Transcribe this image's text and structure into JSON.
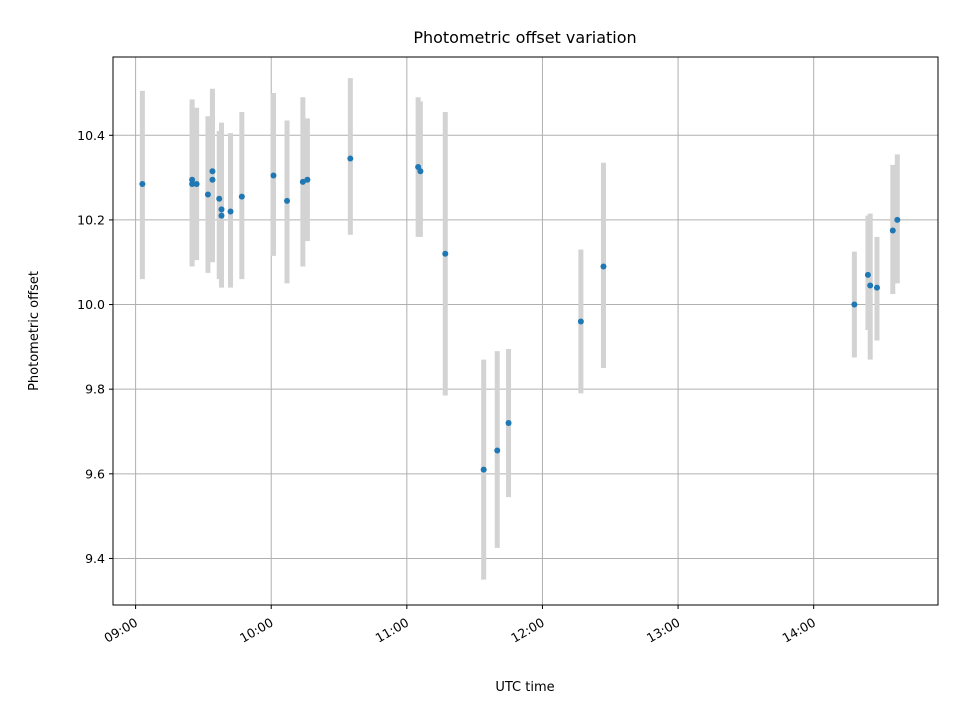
{
  "chart_data": {
    "type": "scatter",
    "title": "Photometric offset variation",
    "xlabel": "UTC time",
    "ylabel": "Photometric offset",
    "x_ticks": [
      "09:00",
      "10:00",
      "11:00",
      "12:00",
      "13:00",
      "14:00"
    ],
    "y_ticks": [
      "9.4",
      "9.6",
      "9.8",
      "10.0",
      "10.2",
      "10.4"
    ],
    "xlim": [
      "08:50",
      "14:55"
    ],
    "ylim": [
      9.29,
      10.585
    ],
    "grid": true,
    "point_color": "#1f77b4",
    "errorbar_color": "#d3d3d3",
    "points": [
      {
        "t": "09:03",
        "y": 10.285,
        "lo": 10.06,
        "hi": 10.505
      },
      {
        "t": "09:25",
        "y": 10.295,
        "lo": 10.09,
        "hi": 10.485
      },
      {
        "t": "09:25",
        "y": 10.285,
        "lo": 10.1,
        "hi": 10.475
      },
      {
        "t": "09:27",
        "y": 10.285,
        "lo": 10.105,
        "hi": 10.465
      },
      {
        "t": "09:32",
        "y": 10.26,
        "lo": 10.075,
        "hi": 10.445
      },
      {
        "t": "09:34",
        "y": 10.315,
        "lo": 10.12,
        "hi": 10.51
      },
      {
        "t": "09:34",
        "y": 10.295,
        "lo": 10.1,
        "hi": 10.5
      },
      {
        "t": "09:37",
        "y": 10.25,
        "lo": 10.06,
        "hi": 10.41
      },
      {
        "t": "09:38",
        "y": 10.225,
        "lo": 10.04,
        "hi": 10.43
      },
      {
        "t": "09:38",
        "y": 10.21,
        "lo": 10.045,
        "hi": 10.4
      },
      {
        "t": "09:42",
        "y": 10.22,
        "lo": 10.04,
        "hi": 10.405
      },
      {
        "t": "09:47",
        "y": 10.255,
        "lo": 10.06,
        "hi": 10.455
      },
      {
        "t": "10:01",
        "y": 10.305,
        "lo": 10.115,
        "hi": 10.5
      },
      {
        "t": "10:07",
        "y": 10.245,
        "lo": 10.05,
        "hi": 10.435
      },
      {
        "t": "10:14",
        "y": 10.29,
        "lo": 10.09,
        "hi": 10.49
      },
      {
        "t": "10:16",
        "y": 10.295,
        "lo": 10.15,
        "hi": 10.44
      },
      {
        "t": "10:35",
        "y": 10.345,
        "lo": 10.165,
        "hi": 10.535
      },
      {
        "t": "11:05",
        "y": 10.325,
        "lo": 10.16,
        "hi": 10.49
      },
      {
        "t": "11:06",
        "y": 10.315,
        "lo": 10.16,
        "hi": 10.48
      },
      {
        "t": "11:17",
        "y": 10.12,
        "lo": 9.785,
        "hi": 10.455
      },
      {
        "t": "11:34",
        "y": 9.61,
        "lo": 9.35,
        "hi": 9.87
      },
      {
        "t": "11:40",
        "y": 9.655,
        "lo": 9.425,
        "hi": 9.89
      },
      {
        "t": "11:45",
        "y": 9.72,
        "lo": 9.545,
        "hi": 9.895
      },
      {
        "t": "12:17",
        "y": 9.96,
        "lo": 9.79,
        "hi": 10.13
      },
      {
        "t": "12:27",
        "y": 10.09,
        "lo": 9.85,
        "hi": 10.335
      },
      {
        "t": "14:18",
        "y": 10.0,
        "lo": 9.875,
        "hi": 10.125
      },
      {
        "t": "14:24",
        "y": 10.07,
        "lo": 9.94,
        "hi": 10.21
      },
      {
        "t": "14:25",
        "y": 10.045,
        "lo": 9.87,
        "hi": 10.215
      },
      {
        "t": "14:28",
        "y": 10.04,
        "lo": 9.915,
        "hi": 10.16
      },
      {
        "t": "14:35",
        "y": 10.175,
        "lo": 10.025,
        "hi": 10.33
      },
      {
        "t": "14:37",
        "y": 10.2,
        "lo": 10.05,
        "hi": 10.355
      }
    ]
  }
}
